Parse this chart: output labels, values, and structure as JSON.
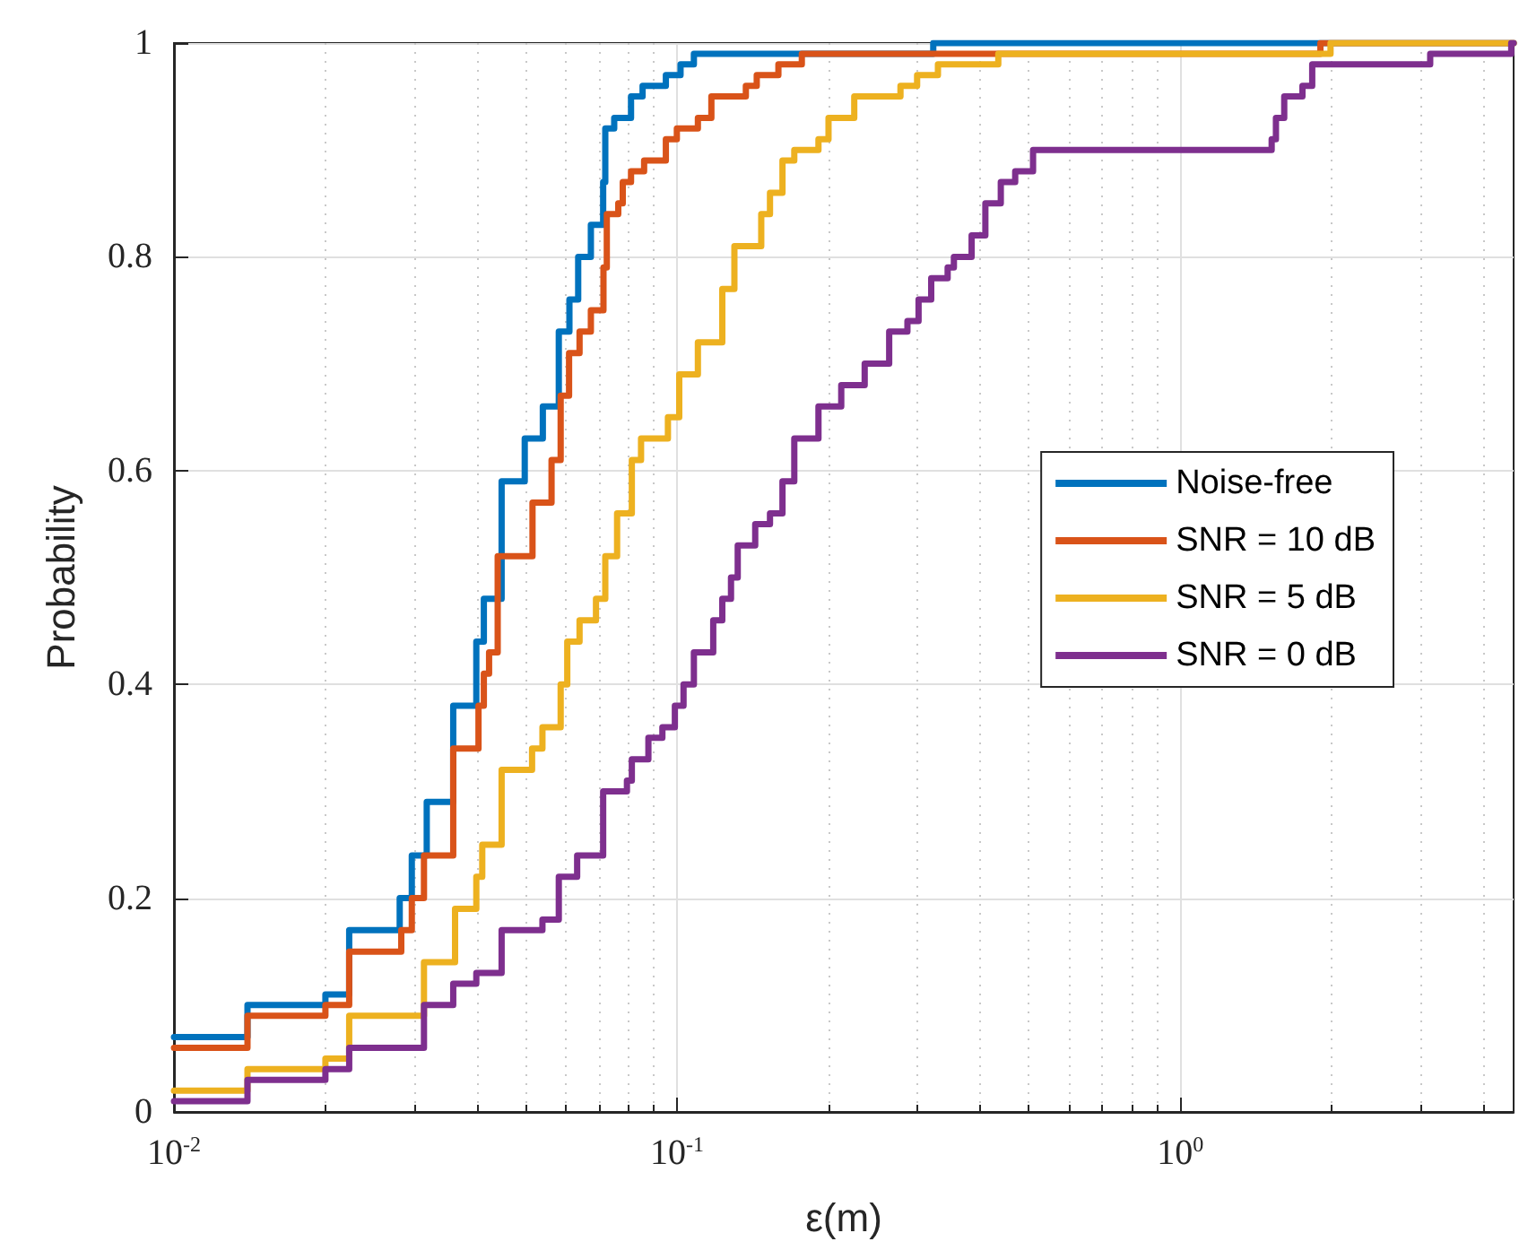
{
  "chart_data": {
    "type": "step",
    "xlabel": "ε(m)",
    "ylabel": "Probability",
    "log": "x",
    "grid": true,
    "legend": "right",
    "line_style": "solid",
    "marker": "none",
    "xlim": [
      0.01,
      4.6
    ],
    "xticks": [
      {
        "value": 0.01,
        "label": "10$^{-2}$"
      },
      {
        "value": 0.1,
        "label": "10$^{-1}$"
      },
      {
        "value": 1,
        "label": "10$^{0}$"
      }
    ],
    "ylim": [
      0,
      1
    ],
    "yticks": [
      0,
      0.2,
      0.4,
      0.6,
      0.8,
      1
    ],
    "series": [
      {
        "name": "Noise-free",
        "color": "#0072bd",
        "x": [
          0.01,
          0.014,
          0.02,
          0.0223,
          0.0281,
          0.0297,
          0.0318,
          0.0359,
          0.0399,
          0.0413,
          0.0448,
          0.0498,
          0.0541,
          0.0582,
          0.0611,
          0.0636,
          0.0674,
          0.0713,
          0.072,
          0.075,
          0.081,
          0.0854,
          0.095,
          0.1016,
          0.108,
          0.323,
          4.6
        ],
        "values": [
          0.07,
          0.1,
          0.11,
          0.17,
          0.2,
          0.24,
          0.29,
          0.38,
          0.44,
          0.48,
          0.59,
          0.63,
          0.66,
          0.73,
          0.76,
          0.8,
          0.83,
          0.87,
          0.92,
          0.93,
          0.95,
          0.96,
          0.97,
          0.98,
          0.99,
          1,
          1
        ]
      },
      {
        "name": "SNR = 10 dB",
        "color": "#d95319",
        "x": [
          0.01,
          0.014,
          0.02,
          0.0223,
          0.0283,
          0.0297,
          0.0314,
          0.0359,
          0.0403,
          0.0413,
          0.0423,
          0.044,
          0.0516,
          0.0563,
          0.0587,
          0.061,
          0.064,
          0.0674,
          0.0714,
          0.0725,
          0.0764,
          0.078,
          0.081,
          0.086,
          0.095,
          0.0999,
          0.11,
          0.117,
          0.137,
          0.144,
          0.159,
          0.177,
          1.9,
          4.6
        ],
        "values": [
          0.06,
          0.09,
          0.1,
          0.15,
          0.17,
          0.2,
          0.24,
          0.34,
          0.38,
          0.41,
          0.43,
          0.52,
          0.57,
          0.61,
          0.67,
          0.71,
          0.73,
          0.75,
          0.79,
          0.84,
          0.85,
          0.87,
          0.88,
          0.89,
          0.91,
          0.92,
          0.93,
          0.95,
          0.96,
          0.97,
          0.98,
          0.99,
          1,
          1
        ]
      },
      {
        "name": "SNR = 5 dB",
        "color": "#edb120",
        "x": [
          0.01,
          0.014,
          0.02,
          0.0223,
          0.0314,
          0.0362,
          0.0399,
          0.041,
          0.0448,
          0.0515,
          0.054,
          0.0587,
          0.0605,
          0.064,
          0.069,
          0.072,
          0.076,
          0.0813,
          0.0848,
          0.0959,
          0.101,
          0.11,
          0.123,
          0.13,
          0.147,
          0.153,
          0.162,
          0.171,
          0.191,
          0.2,
          0.225,
          0.278,
          0.3,
          0.33,
          0.435,
          1.99,
          4.6
        ],
        "values": [
          0.02,
          0.04,
          0.05,
          0.09,
          0.14,
          0.19,
          0.22,
          0.25,
          0.32,
          0.34,
          0.36,
          0.4,
          0.44,
          0.46,
          0.48,
          0.52,
          0.56,
          0.61,
          0.63,
          0.65,
          0.69,
          0.72,
          0.77,
          0.81,
          0.84,
          0.86,
          0.89,
          0.9,
          0.91,
          0.93,
          0.95,
          0.96,
          0.97,
          0.98,
          0.99,
          1,
          1
        ]
      },
      {
        "name": "SNR = 0 dB",
        "color": "#7e2f8e",
        "x": [
          0.01,
          0.014,
          0.02,
          0.0223,
          0.0314,
          0.0359,
          0.0399,
          0.0448,
          0.054,
          0.0582,
          0.0633,
          0.0713,
          0.0795,
          0.0813,
          0.0877,
          0.0935,
          0.099,
          0.103,
          0.108,
          0.118,
          0.123,
          0.128,
          0.132,
          0.143,
          0.153,
          0.162,
          0.171,
          0.191,
          0.212,
          0.236,
          0.264,
          0.287,
          0.302,
          0.32,
          0.345,
          0.355,
          0.385,
          0.41,
          0.44,
          0.47,
          0.51,
          1.52,
          1.55,
          1.61,
          1.75,
          1.83,
          3.14,
          4.55,
          4.6
        ],
        "values": [
          0.01,
          0.03,
          0.04,
          0.06,
          0.1,
          0.12,
          0.13,
          0.17,
          0.18,
          0.22,
          0.24,
          0.3,
          0.31,
          0.33,
          0.35,
          0.36,
          0.38,
          0.4,
          0.43,
          0.46,
          0.48,
          0.5,
          0.53,
          0.55,
          0.56,
          0.59,
          0.63,
          0.66,
          0.68,
          0.7,
          0.73,
          0.74,
          0.76,
          0.78,
          0.79,
          0.8,
          0.82,
          0.85,
          0.87,
          0.88,
          0.9,
          0.91,
          0.93,
          0.95,
          0.96,
          0.98,
          0.99,
          1,
          1
        ]
      }
    ]
  }
}
